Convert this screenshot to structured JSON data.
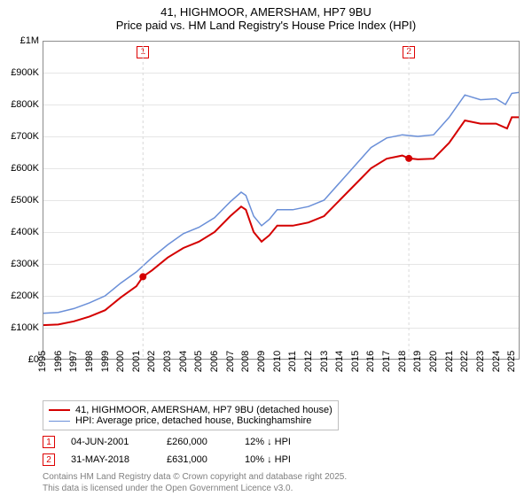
{
  "title": {
    "line1": "41, HIGHMOOR, AMERSHAM, HP7 9BU",
    "line2": "Price paid vs. HM Land Registry's House Price Index (HPI)"
  },
  "chart": {
    "type": "line",
    "xlim": [
      1995,
      2025.5
    ],
    "ylim": [
      0,
      1000000
    ],
    "ytick_step": 100000,
    "y_ticks": [
      "£0",
      "£100K",
      "£200K",
      "£300K",
      "£400K",
      "£500K",
      "£600K",
      "£700K",
      "£800K",
      "£900K",
      "£1M"
    ],
    "x_ticks": [
      1995,
      1996,
      1997,
      1998,
      1999,
      2000,
      2001,
      2002,
      2003,
      2004,
      2005,
      2006,
      2007,
      2008,
      2009,
      2010,
      2011,
      2012,
      2013,
      2014,
      2015,
      2016,
      2017,
      2018,
      2019,
      2020,
      2021,
      2022,
      2023,
      2024,
      2025
    ],
    "background_color": "#ffffff",
    "grid_color": "#e6e6e6",
    "shade_color": "#f0f5fc",
    "shade_ranges": [
      [
        2001.42,
        2018.42
      ]
    ],
    "axis_border_color": "#8c8c8c",
    "series": [
      {
        "name": "price_paid",
        "label": "41, HIGHMOOR, AMERSHAM, HP7 9BU (detached house)",
        "color": "#d40000",
        "line_width": 2,
        "data": [
          [
            1995,
            108000
          ],
          [
            1996,
            110000
          ],
          [
            1997,
            120000
          ],
          [
            1998,
            135000
          ],
          [
            1999,
            155000
          ],
          [
            2000,
            195000
          ],
          [
            2001,
            230000
          ],
          [
            2001.42,
            260000
          ],
          [
            2002,
            280000
          ],
          [
            2003,
            320000
          ],
          [
            2004,
            350000
          ],
          [
            2005,
            370000
          ],
          [
            2006,
            400000
          ],
          [
            2007,
            450000
          ],
          [
            2007.7,
            480000
          ],
          [
            2008,
            470000
          ],
          [
            2008.5,
            400000
          ],
          [
            2009,
            370000
          ],
          [
            2009.5,
            390000
          ],
          [
            2010,
            420000
          ],
          [
            2011,
            420000
          ],
          [
            2012,
            430000
          ],
          [
            2013,
            450000
          ],
          [
            2014,
            500000
          ],
          [
            2015,
            550000
          ],
          [
            2016,
            600000
          ],
          [
            2017,
            630000
          ],
          [
            2018,
            640000
          ],
          [
            2018.42,
            631000
          ],
          [
            2019,
            628000
          ],
          [
            2020,
            630000
          ],
          [
            2021,
            680000
          ],
          [
            2022,
            750000
          ],
          [
            2023,
            740000
          ],
          [
            2024,
            740000
          ],
          [
            2024.7,
            725000
          ],
          [
            2025,
            760000
          ],
          [
            2025.5,
            760000
          ]
        ]
      },
      {
        "name": "hpi",
        "label": "HPI: Average price, detached house, Buckinghamshire",
        "color": "#6a8fd8",
        "line_width": 1.5,
        "data": [
          [
            1995,
            145000
          ],
          [
            1996,
            148000
          ],
          [
            1997,
            160000
          ],
          [
            1998,
            178000
          ],
          [
            1999,
            200000
          ],
          [
            2000,
            240000
          ],
          [
            2001,
            275000
          ],
          [
            2002,
            320000
          ],
          [
            2003,
            360000
          ],
          [
            2004,
            395000
          ],
          [
            2005,
            415000
          ],
          [
            2006,
            445000
          ],
          [
            2007,
            495000
          ],
          [
            2007.7,
            525000
          ],
          [
            2008,
            515000
          ],
          [
            2008.5,
            450000
          ],
          [
            2009,
            420000
          ],
          [
            2009.5,
            440000
          ],
          [
            2010,
            470000
          ],
          [
            2011,
            470000
          ],
          [
            2012,
            480000
          ],
          [
            2013,
            500000
          ],
          [
            2014,
            555000
          ],
          [
            2015,
            610000
          ],
          [
            2016,
            665000
          ],
          [
            2017,
            695000
          ],
          [
            2018,
            705000
          ],
          [
            2019,
            700000
          ],
          [
            2020,
            705000
          ],
          [
            2021,
            760000
          ],
          [
            2022,
            830000
          ],
          [
            2023,
            815000
          ],
          [
            2024,
            818000
          ],
          [
            2024.6,
            800000
          ],
          [
            2025,
            835000
          ],
          [
            2025.5,
            838000
          ]
        ]
      }
    ],
    "markers": [
      {
        "id": "1",
        "x": 2001.42,
        "y": 260000,
        "dot_color": "#d40000"
      },
      {
        "id": "2",
        "x": 2018.42,
        "y": 631000,
        "dot_color": "#d40000"
      }
    ]
  },
  "legend": {
    "border_color": "#bfbfbf",
    "items": [
      {
        "color": "#d40000",
        "width": 2,
        "label": "41, HIGHMOOR, AMERSHAM, HP7 9BU (detached house)"
      },
      {
        "color": "#6a8fd8",
        "width": 1.5,
        "label": "HPI: Average price, detached house, Buckinghamshire"
      }
    ]
  },
  "events": [
    {
      "id": "1",
      "date": "04-JUN-2001",
      "price": "£260,000",
      "diff": "12% ↓ HPI"
    },
    {
      "id": "2",
      "date": "31-MAY-2018",
      "price": "£631,000",
      "diff": "10% ↓ HPI"
    }
  ],
  "footer": {
    "line1": "Contains HM Land Registry data © Crown copyright and database right 2025.",
    "line2": "This data is licensed under the Open Government Licence v3.0."
  }
}
